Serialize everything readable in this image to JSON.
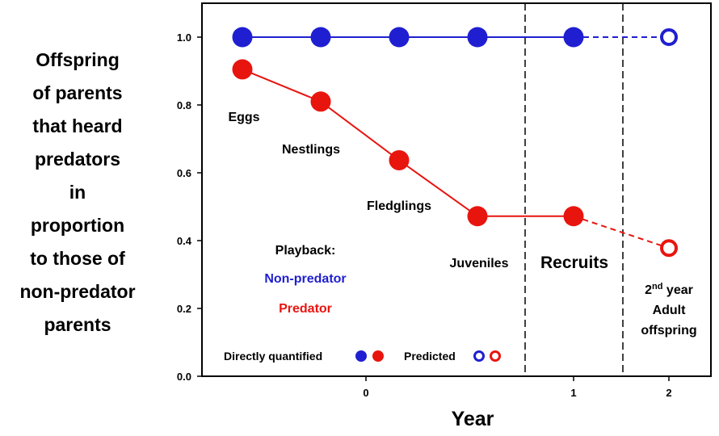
{
  "chart_data": {
    "type": "line",
    "ylabel_lines": [
      "Offspring",
      "of parents",
      "that heard",
      "predators",
      "in",
      "proportion",
      "to those of",
      "non-predator",
      "parents"
    ],
    "xlabel": "Year",
    "ylim": [
      0,
      1.1
    ],
    "yticks": [
      "0.0",
      "0.2",
      "0.4",
      "0.6",
      "0.8",
      "1.0"
    ],
    "xticks": [
      "0",
      "1",
      "2"
    ],
    "grid": false,
    "series": [
      {
        "name": "Non-predator",
        "color": "#1f1fd1",
        "quantified_values": [
          1.0,
          1.0,
          1.0,
          1.0,
          1.0
        ],
        "predicted_value": 1.0
      },
      {
        "name": "Predator",
        "color": "#e8150f",
        "quantified_values": [
          0.905,
          0.81,
          0.637,
          0.472,
          0.472
        ],
        "predicted_value": 0.378
      }
    ],
    "stage_labels": [
      "Eggs",
      "Nestlings",
      "Fledglings",
      "Juveniles"
    ],
    "recruits_label": "Recruits",
    "adult_label": {
      "line1_main": "2",
      "line1_sup": "nd",
      "line1_rest": " year",
      "line2": "Adult",
      "line3": "offspring"
    },
    "playback_legend": {
      "title": "Playback:",
      "non_predator": "Non-predator",
      "predator": "Predator"
    },
    "marker_legend": {
      "directly_quantified": "Directly quantified",
      "predicted": "Predicted"
    }
  }
}
